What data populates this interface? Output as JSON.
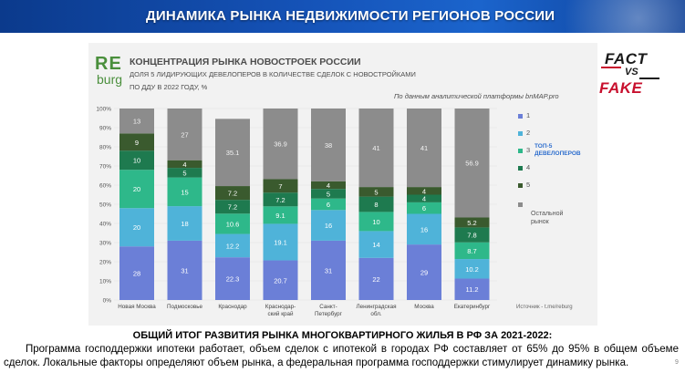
{
  "header": {
    "title": "ДИНАМИКА РЫНКА НЕДВИЖИМОСТИ РЕГИОНОВ РОССИИ"
  },
  "logo": {
    "line1": "RE",
    "line2": "burg"
  },
  "badge": {
    "fact": "FACT",
    "vs": "VS",
    "fake": "FAKE"
  },
  "chart_data": {
    "type": "bar",
    "stacked": true,
    "title": "КОНЦЕНТРАЦИЯ РЫНКА НОВОСТРОЕК РОССИИ",
    "subtitle1": "ДОЛЯ 5 ЛИДИРУЮЩИХ ДЕВЕЛОПЕРОВ В КОЛИЧЕСТВЕ СДЕЛОК С НОВОСТРОЙКАМИ",
    "subtitle2": "ПО ДДУ В 2022 ГОДУ, %",
    "source_top": "По данным аналитической платформы bnMAP.pro",
    "source_bottom": "Источник - t.me/reburg",
    "ylim": [
      0,
      100
    ],
    "yticks": [
      "0%",
      "10%",
      "20%",
      "30%",
      "40%",
      "50%",
      "60%",
      "70%",
      "80%",
      "90%",
      "100%"
    ],
    "categories": [
      [
        "Новая Москва"
      ],
      [
        "Подмосковье"
      ],
      [
        "Краснодар"
      ],
      [
        "Краснодар-",
        "ский край"
      ],
      [
        "Санкт-",
        "Петербург"
      ],
      [
        "Ленинградская",
        "обл."
      ],
      [
        "Москва"
      ],
      [
        "Екатеринбург"
      ]
    ],
    "series": [
      {
        "name": "1",
        "color": "#6b7fd7",
        "values": [
          28,
          31,
          22.3,
          20.7,
          31,
          22,
          29,
          11.2
        ]
      },
      {
        "name": "2",
        "color": "#4fb3d9",
        "values": [
          20,
          18,
          12.2,
          19.1,
          16,
          14,
          16,
          10.2
        ]
      },
      {
        "name": "3",
        "color": "#2eb88a",
        "values": [
          20,
          15,
          10.6,
          9.1,
          6,
          10,
          6,
          8.7
        ]
      },
      {
        "name": "4",
        "color": "#1e7a4f",
        "values": [
          10,
          5,
          7.2,
          7.2,
          5,
          8,
          4,
          7.8
        ]
      },
      {
        "name": "5",
        "color": "#3a5a2e",
        "values": [
          9,
          4,
          7.2,
          7,
          4,
          5,
          4,
          5.2
        ]
      },
      {
        "name": "Остальной рынок",
        "color": "#8c8c8c",
        "values": [
          13,
          27,
          35.1,
          36.9,
          38,
          41,
          41,
          56.9
        ]
      }
    ],
    "legend": {
      "items": [
        "1",
        "2",
        "3",
        "4",
        "5"
      ],
      "group_label_line1": "ТОП-5",
      "group_label_line2": "ДЕВЕЛОПЕРОВ",
      "rest_line1": "Остальной",
      "rest_line2": "рынок",
      "placement": "right"
    }
  },
  "summary": {
    "title": "ОБЩИЙ ИТОГ РАЗВИТИЯ РЫНКА МНОГОКВАРТИРНОГО ЖИЛЬЯ В РФ ЗА 2021-2022:",
    "text": "Программа господдержки ипотеки работает, объем сделок с ипотекой в городах РФ составляет от 65% до 95% в общем объеме сделок. Локальные факторы определяют объем рынка, а федеральная программа господдержки стимулирует динамику рынка."
  },
  "page_number": "9"
}
